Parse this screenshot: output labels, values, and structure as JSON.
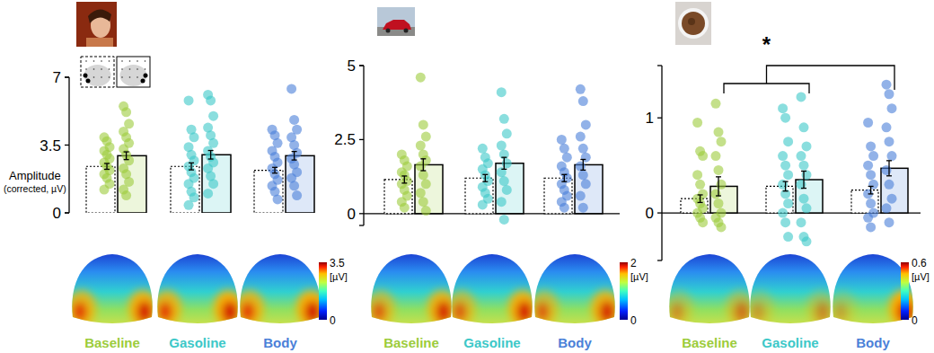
{
  "chart_data": [
    {
      "type": "bar",
      "categories": [
        "Baseline",
        "Gasoline",
        "Body"
      ],
      "colors": [
        "#9ccc3c",
        "#3cc8c8",
        "#4a7fd8"
      ],
      "ylabel": "Amplitude",
      "ylabel_note": "(corrected, µV)",
      "ylim": [
        0,
        7
      ],
      "yticks": [
        0,
        3.5,
        7
      ],
      "series": [
        {
          "line_style": "dotted",
          "values": [
            2.4,
            2.4,
            2.2
          ],
          "errors": [
            0.15,
            0.18,
            0.15
          ],
          "points": [
            [
              3.9,
              3.7,
              3.4,
              3.2,
              3.0,
              2.8,
              2.6,
              2.4,
              2.2,
              2.0,
              1.8,
              1.5,
              1.2
            ],
            [
              5.8,
              4.3,
              3.9,
              3.4,
              3.0,
              2.7,
              2.4,
              2.1,
              1.8,
              1.5,
              1.1,
              0.8,
              0.4
            ],
            [
              4.3,
              4.0,
              3.6,
              3.2,
              2.9,
              2.6,
              2.3,
              2.0,
              1.7,
              1.4,
              1.1,
              0.7
            ]
          ]
        },
        {
          "line_style": "solid",
          "values": [
            2.95,
            3.0,
            2.95
          ],
          "errors": [
            0.2,
            0.22,
            0.22
          ],
          "points": [
            [
              5.5,
              5.2,
              4.6,
              4.2,
              3.9,
              3.6,
              3.3,
              3.0,
              2.7,
              2.3,
              2.0,
              1.6,
              1.2,
              0.9
            ],
            [
              6.1,
              5.8,
              5.0,
              4.4,
              4.0,
              3.6,
              3.2,
              2.9,
              2.6,
              2.3,
              1.9,
              1.5,
              1.0
            ],
            [
              6.4,
              4.8,
              4.3,
              3.9,
              3.5,
              3.1,
              2.8,
              2.5,
              2.1,
              1.8,
              1.4,
              0.9
            ]
          ]
        }
      ],
      "colorbar": {
        "range": [
          0,
          3.5
        ],
        "ticks": [
          0,
          3.5
        ],
        "unit": "[µV]"
      }
    },
    {
      "type": "bar",
      "categories": [
        "Baseline",
        "Gasoline",
        "Body"
      ],
      "colors": [
        "#9ccc3c",
        "#3cc8c8",
        "#4a7fd8"
      ],
      "ylim": [
        -0.4,
        5
      ],
      "yticks": [
        0,
        2.5,
        5
      ],
      "series": [
        {
          "line_style": "dotted",
          "values": [
            1.15,
            1.2,
            1.2
          ],
          "errors": [
            0.12,
            0.12,
            0.12
          ],
          "points": [
            [
              2.0,
              1.8,
              1.6,
              1.4,
              1.3,
              1.1,
              1.0,
              0.8,
              0.6,
              0.4,
              0.2
            ],
            [
              2.2,
              1.9,
              1.7,
              1.5,
              1.3,
              1.1,
              0.9,
              0.7,
              0.5,
              0.3
            ],
            [
              2.5,
              2.2,
              1.9,
              1.6,
              1.4,
              1.2,
              1.0,
              0.8,
              0.6,
              0.4,
              0.2
            ]
          ]
        },
        {
          "line_style": "solid",
          "values": [
            1.65,
            1.7,
            1.65
          ],
          "errors": [
            0.2,
            0.2,
            0.18
          ],
          "points": [
            [
              4.6,
              3.0,
              2.6,
              2.3,
              2.0,
              1.8,
              1.6,
              1.3,
              1.0,
              0.7,
              0.4,
              0.1
            ],
            [
              4.1,
              3.2,
              2.7,
              2.3,
              2.0,
              1.7,
              1.4,
              1.1,
              0.8,
              0.4,
              -0.2
            ],
            [
              4.2,
              3.8,
              3.0,
              2.6,
              2.2,
              1.9,
              1.6,
              1.3,
              1.0,
              0.6,
              0.2
            ]
          ]
        }
      ],
      "colorbar": {
        "range": [
          0,
          2
        ],
        "ticks": [
          0,
          2
        ],
        "unit": "[µV]"
      }
    },
    {
      "type": "bar",
      "categories": [
        "Baseline",
        "Gasoline",
        "Body"
      ],
      "colors": [
        "#9ccc3c",
        "#3cc8c8",
        "#4a7fd8"
      ],
      "ylim": [
        -0.5,
        1.55
      ],
      "yticks": [
        0,
        1
      ],
      "series": [
        {
          "line_style": "dotted",
          "values": [
            0.15,
            0.28,
            0.24
          ],
          "errors": [
            0.04,
            0.05,
            0.04
          ],
          "points": [
            [
              0.95,
              0.65,
              0.6,
              0.4,
              0.3,
              0.2,
              0.15,
              0.1,
              0.05,
              0.0,
              -0.05,
              -0.1
            ],
            [
              1.1,
              1.0,
              0.75,
              0.6,
              0.5,
              0.4,
              0.3,
              0.2,
              0.1,
              0.0,
              -0.1,
              -0.25
            ],
            [
              0.95,
              0.7,
              0.6,
              0.5,
              0.4,
              0.3,
              0.2,
              0.1,
              0.0,
              -0.05,
              -0.15
            ]
          ]
        },
        {
          "line_style": "solid",
          "values": [
            0.28,
            0.35,
            0.47
          ],
          "errors": [
            0.1,
            0.09,
            0.08
          ],
          "points": [
            [
              1.15,
              0.85,
              0.75,
              0.6,
              0.45,
              0.3,
              0.2,
              0.1,
              0.0,
              -0.05,
              -0.1,
              -0.15
            ],
            [
              1.22,
              0.9,
              0.7,
              0.6,
              0.5,
              0.4,
              0.3,
              0.15,
              0.05,
              -0.1,
              -0.25,
              -0.3
            ],
            [
              1.35,
              1.25,
              1.1,
              0.9,
              0.75,
              0.6,
              0.45,
              0.3,
              0.15,
              0.05,
              -0.1
            ]
          ]
        }
      ],
      "significance": {
        "text": "*",
        "groups": [
          [
            0,
            1
          ],
          [
            2
          ]
        ],
        "series": 1
      },
      "colorbar": {
        "range": [
          0,
          0.6
        ],
        "ticks": [
          0,
          0.6
        ],
        "unit": "[µV]"
      }
    }
  ]
}
